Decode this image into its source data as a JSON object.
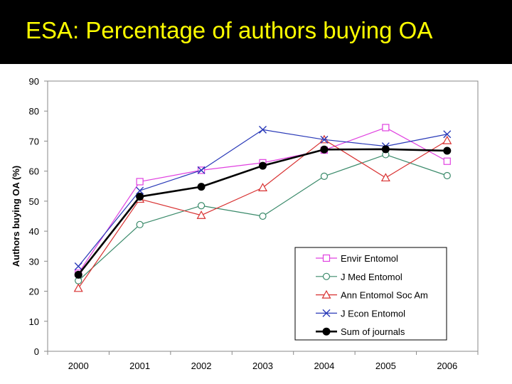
{
  "slide": {
    "title": "ESA: Percentage of authors buying OA"
  },
  "chart_data": {
    "type": "line",
    "title": "ESA: Percentage of authors buying OA",
    "xlabel": "",
    "ylabel": "Authors buying OA (%)",
    "x": [
      "2000",
      "2001",
      "2002",
      "2003",
      "2004",
      "2005",
      "2006"
    ],
    "ylim": [
      0,
      90
    ],
    "yticks": [
      0,
      10,
      20,
      30,
      40,
      50,
      60,
      70,
      80,
      90
    ],
    "grid": false,
    "legend_position": "bottom-right",
    "series": [
      {
        "name": "Envir Entomol",
        "color": "#e040e0",
        "marker": "square",
        "values": [
          26,
          56.5,
          60.3,
          62.8,
          67,
          74.5,
          63.3
        ]
      },
      {
        "name": "J Med Entomol",
        "color": "#3a8a6a",
        "marker": "circle",
        "values": [
          23.5,
          42.2,
          48.5,
          45,
          58.3,
          65.5,
          58.5
        ]
      },
      {
        "name": "Ann Entomol Soc Am",
        "color": "#d83030",
        "marker": "triangle",
        "values": [
          21,
          50.7,
          45.3,
          54.5,
          70.5,
          57.8,
          70.2
        ]
      },
      {
        "name": "J Econ Entomol",
        "color": "#2a3ab8",
        "marker": "x",
        "values": [
          28.3,
          53.5,
          60.3,
          73.8,
          70.5,
          68.3,
          72.3
        ]
      },
      {
        "name": "Sum of journals",
        "color": "#000000",
        "marker": "filled-circle",
        "values": [
          25.5,
          51.5,
          54.8,
          61.8,
          67.2,
          67.3,
          66.8
        ]
      }
    ]
  }
}
